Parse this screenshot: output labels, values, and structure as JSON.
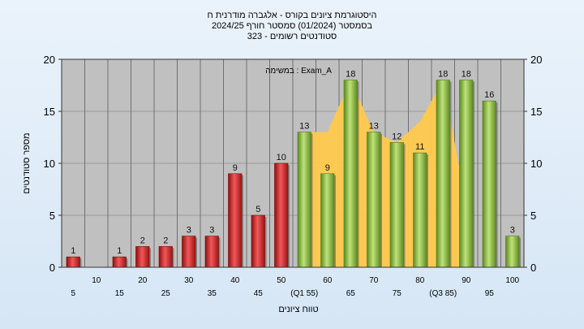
{
  "chart_data": {
    "type": "bar",
    "title_lines": [
      "היסטוגרמת ציונים בקורס - אלגברה מודרנית ח",
      "בסמסטר  (01/2024)  סמסטר חורף  2024/25",
      "סטודנטים רשומים - 323"
    ],
    "xlabel": "טווח ציונים",
    "ylabel": "מספר סטודנטים",
    "annotation": "במשימה : Exam_A",
    "ylim": [
      0,
      20
    ],
    "yticks": [
      0,
      5,
      10,
      15,
      20
    ],
    "grid": true,
    "x_tick_labels": [
      "5",
      "10",
      "15",
      "20",
      "25",
      "30",
      "35",
      "40",
      "45",
      "50",
      "(Q1 55)",
      "60",
      "65",
      "70",
      "75",
      "80",
      "(Q3 85)",
      "90",
      "95",
      "100"
    ],
    "categories": [
      5,
      10,
      15,
      20,
      25,
      30,
      35,
      40,
      45,
      50,
      55,
      60,
      65,
      70,
      75,
      80,
      85,
      90,
      95,
      100
    ],
    "values": [
      1,
      0,
      1,
      2,
      2,
      3,
      3,
      9,
      5,
      10,
      13,
      9,
      18,
      13,
      12,
      11,
      18,
      18,
      16,
      3
    ],
    "value_labels": [
      "1",
      "",
      "1",
      "2",
      "2",
      "3",
      "3",
      "9",
      "5",
      "10",
      "13",
      "9",
      "18",
      "13",
      "12",
      "11",
      "18",
      "18",
      "16",
      "3"
    ],
    "bar_colors": {
      "low": "#d42a2a",
      "high": "#8cc043"
    },
    "low_threshold": 50,
    "iqr_area": {
      "color": "#ffc94d",
      "x": [
        55,
        60,
        65,
        70,
        75,
        80,
        85,
        90
      ],
      "values": [
        13,
        13,
        18,
        13,
        12,
        14,
        18,
        6
      ]
    }
  }
}
